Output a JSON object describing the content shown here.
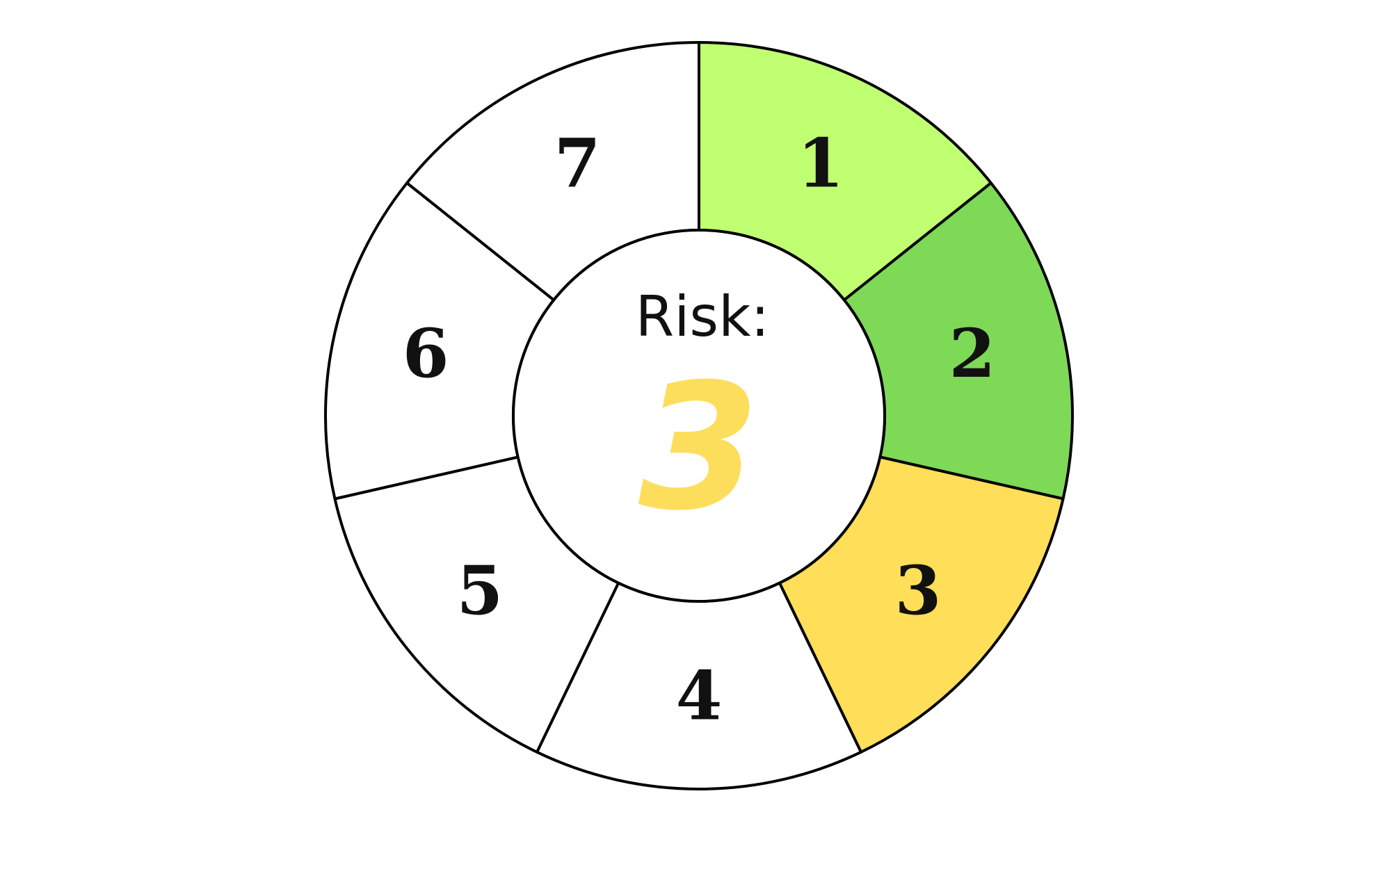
{
  "dial": {
    "center_label": "Risk:",
    "current_value": "3",
    "current_value_color": "#fdde5c",
    "outline_color": "#000000",
    "segments": [
      {
        "label": "1",
        "color": "#c1ff72",
        "active": true
      },
      {
        "label": "2",
        "color": "#7ed957",
        "active": true
      },
      {
        "label": "3",
        "color": "#ffde59",
        "active": true
      },
      {
        "label": "4",
        "color": "#ffffff",
        "active": false
      },
      {
        "label": "5",
        "color": "#ffffff",
        "active": false
      },
      {
        "label": "6",
        "color": "#ffffff",
        "active": false
      },
      {
        "label": "7",
        "color": "#ffffff",
        "active": false
      }
    ]
  }
}
